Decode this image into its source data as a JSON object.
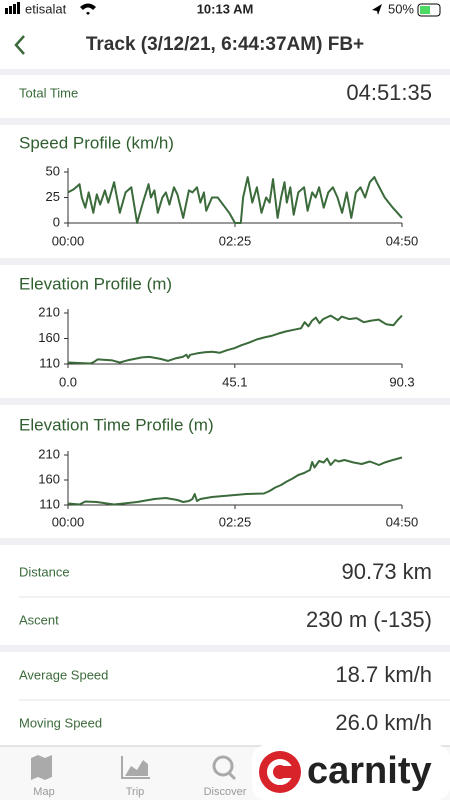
{
  "status_bar": {
    "carrier": "etisalat",
    "time": "10:13 AM",
    "battery": "50%"
  },
  "nav": {
    "title": "Track (3/12/21, 6:44:37AM) FB+"
  },
  "total_time": {
    "label": "Total Time",
    "value": "04:51:35"
  },
  "stats": [
    {
      "label": "Distance",
      "value": "90.73 km"
    },
    {
      "label": "Ascent",
      "value": "230 m (-135)"
    },
    {
      "label": "Average Speed",
      "value": "18.7 km/h"
    },
    {
      "label": "Moving Speed",
      "value": "26.0 km/h"
    }
  ],
  "tabs": [
    "Map",
    "Trip",
    "Discover"
  ],
  "logo": "carnity",
  "chart_data": [
    {
      "type": "line",
      "title": "Speed Profile (km/h)",
      "color": "#3b6a3b",
      "x": [
        0,
        5,
        10,
        12,
        15,
        18,
        22,
        25,
        28,
        32,
        35,
        40,
        45,
        50,
        55,
        60,
        65,
        70,
        72,
        75,
        78,
        82,
        85,
        88,
        92,
        95,
        100,
        105,
        108,
        112,
        115,
        118,
        120,
        125,
        130,
        140,
        145,
        150,
        152,
        156,
        160,
        164,
        168,
        172,
        175,
        178,
        182,
        185,
        188,
        190,
        193,
        196,
        200,
        205,
        208,
        212,
        215,
        218,
        222,
        226,
        230,
        234,
        238,
        242,
        246,
        250,
        254,
        258,
        262,
        266,
        268,
        275,
        282,
        290
      ],
      "values": [
        30,
        33,
        38,
        25,
        15,
        30,
        10,
        28,
        18,
        32,
        20,
        40,
        10,
        30,
        35,
        0,
        20,
        38,
        25,
        32,
        10,
        25,
        30,
        18,
        35,
        28,
        5,
        32,
        30,
        35,
        20,
        30,
        12,
        25,
        25,
        10,
        0,
        0,
        25,
        45,
        20,
        35,
        10,
        25,
        20,
        43,
        5,
        25,
        40,
        20,
        35,
        8,
        30,
        35,
        12,
        30,
        25,
        35,
        15,
        30,
        35,
        25,
        10,
        30,
        5,
        30,
        35,
        25,
        40,
        45,
        40,
        25,
        15,
        5
      ],
      "xlim": [
        0,
        290
      ],
      "ylim": [
        0,
        50
      ],
      "xticks": [
        {
          "value": 0,
          "label": "00:00"
        },
        {
          "value": 145,
          "label": "02:25"
        },
        {
          "value": 290,
          "label": "04:50"
        }
      ],
      "yticks": [
        0,
        25,
        50
      ]
    },
    {
      "type": "line",
      "title": "Elevation Profile (m)",
      "color": "#3b6a3b",
      "x": [
        0,
        3,
        6,
        7,
        8,
        10,
        12,
        14,
        16,
        20,
        22,
        25,
        27,
        29,
        31,
        32,
        32.5,
        33,
        35,
        37,
        39,
        41,
        43,
        45,
        47,
        49,
        51,
        53,
        55,
        57,
        59,
        61,
        63,
        64,
        65,
        66,
        67,
        68,
        69,
        71,
        73,
        74,
        76,
        78,
        80,
        82,
        84,
        86,
        88,
        89,
        90.3
      ],
      "values": [
        113,
        112,
        111,
        114,
        119,
        118,
        117,
        113,
        117,
        123,
        124,
        120,
        116,
        121,
        124,
        128,
        122,
        128,
        131,
        133,
        134,
        132,
        137,
        141,
        147,
        152,
        158,
        162,
        165,
        170,
        174,
        177,
        180,
        192,
        184,
        195,
        201,
        190,
        198,
        205,
        196,
        203,
        198,
        200,
        192,
        195,
        197,
        188,
        186,
        195,
        205
      ],
      "xlim": [
        0,
        90.3
      ],
      "ylim": [
        110,
        210
      ],
      "xticks": [
        {
          "value": 0,
          "label": "0.0"
        },
        45.1,
        90.3
      ],
      "yticks": [
        110,
        160,
        210
      ]
    },
    {
      "type": "line",
      "title": "Elevation Time Profile (m)",
      "color": "#3b6a3b",
      "x": [
        0,
        10,
        15,
        25,
        40,
        60,
        75,
        85,
        95,
        100,
        105,
        108,
        110,
        112,
        115,
        125,
        135,
        155,
        170,
        175,
        180,
        185,
        190,
        195,
        200,
        205,
        210,
        212,
        214,
        218,
        222,
        225,
        228,
        232,
        235,
        240,
        248,
        255,
        262,
        270,
        275,
        282,
        290
      ],
      "values": [
        113,
        111,
        117,
        116,
        111,
        116,
        122,
        124,
        120,
        116,
        118,
        122,
        132,
        118,
        122,
        126,
        128,
        132,
        133,
        138,
        145,
        150,
        157,
        163,
        170,
        174,
        180,
        196,
        185,
        198,
        195,
        203,
        190,
        200,
        197,
        200,
        195,
        192,
        197,
        190,
        195,
        200,
        205
      ],
      "xlim": [
        0,
        290
      ],
      "ylim": [
        110,
        210
      ],
      "xticks": [
        {
          "value": 0,
          "label": "00:00"
        },
        {
          "value": 145,
          "label": "02:25"
        },
        {
          "value": 290,
          "label": "04:50"
        }
      ],
      "yticks": [
        110,
        160,
        210
      ]
    }
  ]
}
